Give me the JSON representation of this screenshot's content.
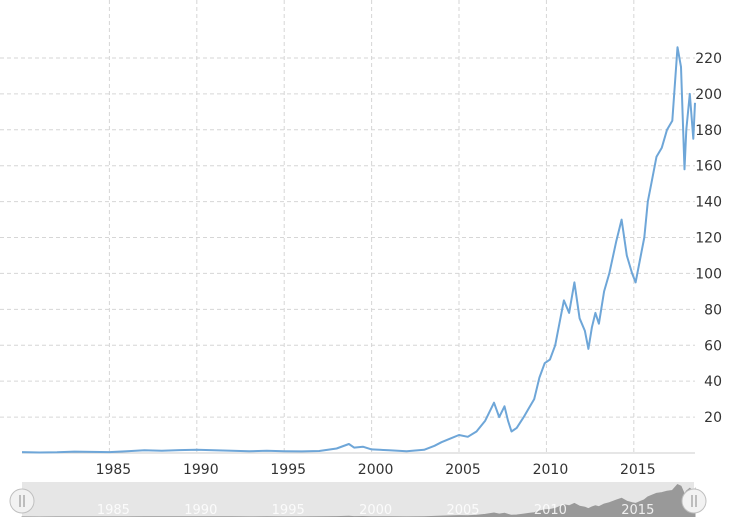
{
  "chart_data": {
    "type": "line",
    "title": "",
    "xlabel": "",
    "ylabel": "",
    "xlim": [
      1980,
      2018.5
    ],
    "ylim": [
      0,
      230
    ],
    "x_ticks": [
      "1985",
      "1990",
      "1995",
      "2000",
      "2005",
      "2010",
      "2015"
    ],
    "y_ticks": [
      "20",
      "40",
      "60",
      "80",
      "100",
      "120",
      "140",
      "160",
      "180",
      "200",
      "220"
    ],
    "grid": true,
    "legend": "none",
    "line_color": "#6ea6d8",
    "series": [
      {
        "x": [
          1980.0,
          1981.0,
          1982.0,
          1983.0,
          1984.0,
          1985.0,
          1986.0,
          1987.0,
          1988.0,
          1989.0,
          1990.0,
          1991.0,
          1992.0,
          1993.0,
          1994.0,
          1995.0,
          1996.0,
          1997.0,
          1998.0,
          1998.7,
          1999.0,
          1999.5,
          2000.0,
          2001.0,
          2002.0,
          2003.0,
          2003.6,
          2004.0,
          2004.5,
          2005.0,
          2005.5,
          2006.0,
          2006.5,
          2007.0,
          2007.3,
          2007.6,
          2007.8,
          2008.0,
          2008.3,
          2008.7,
          2009.0,
          2009.3,
          2009.6,
          2009.9,
          2010.2,
          2010.5,
          2010.8,
          2011.0,
          2011.3,
          2011.6,
          2011.9,
          2012.2,
          2012.4,
          2012.6,
          2012.8,
          2013.0,
          2013.3,
          2013.6,
          2014.0,
          2014.3,
          2014.6,
          2014.9,
          2015.1,
          2015.4,
          2015.6,
          2015.8,
          2016.0,
          2016.3,
          2016.6,
          2016.9,
          2017.2,
          2017.5,
          2017.7,
          2017.9,
          2018.0,
          2018.2,
          2018.4,
          2018.5
        ],
        "y": [
          0.5,
          0.3,
          0.4,
          0.8,
          0.6,
          0.5,
          1.0,
          1.5,
          1.2,
          1.6,
          1.8,
          1.5,
          1.3,
          1.0,
          1.2,
          1.0,
          0.9,
          1.1,
          2.5,
          5.0,
          3.0,
          3.5,
          2.0,
          1.5,
          1.0,
          1.8,
          4.0,
          6.0,
          8.0,
          10.0,
          9.0,
          12.0,
          18.0,
          28.0,
          20.0,
          26.0,
          18.0,
          12.0,
          14.0,
          20.0,
          25.0,
          30.0,
          42.0,
          50.0,
          52.0,
          60.0,
          75.0,
          85.0,
          78.0,
          95.0,
          75.0,
          68.0,
          58.0,
          70.0,
          78.0,
          72.0,
          90.0,
          100.0,
          118.0,
          130.0,
          110.0,
          100.0,
          95.0,
          110.0,
          120.0,
          140.0,
          150.0,
          165.0,
          170.0,
          180.0,
          185.0,
          226.0,
          215.0,
          158.0,
          180.0,
          200.0,
          175.0,
          195.0
        ]
      }
    ]
  }
}
